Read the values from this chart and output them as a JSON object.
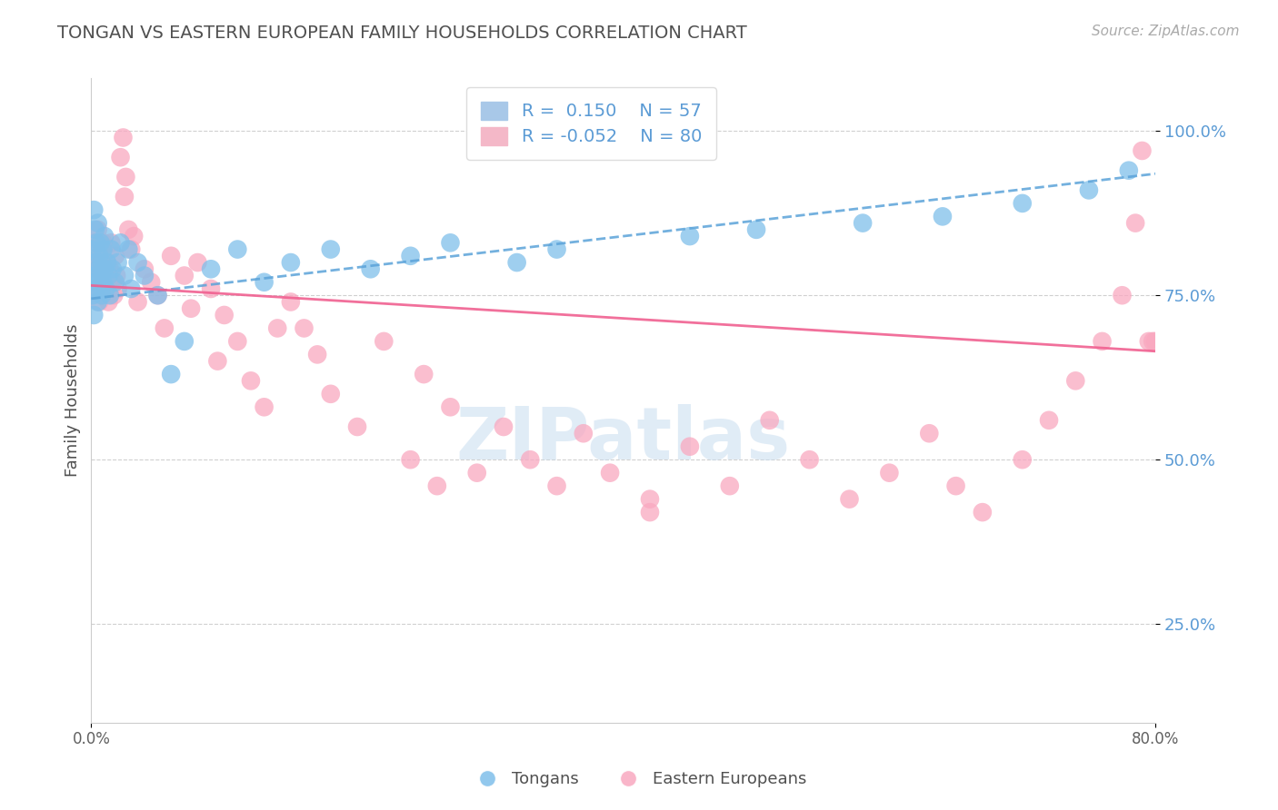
{
  "title": "TONGAN VS EASTERN EUROPEAN FAMILY HOUSEHOLDS CORRELATION CHART",
  "source_text": "Source: ZipAtlas.com",
  "ylabel": "Family Households",
  "ytick_vals": [
    0.25,
    0.5,
    0.75,
    1.0
  ],
  "ytick_labels": [
    "25.0%",
    "50.0%",
    "75.0%",
    "100.0%"
  ],
  "xlim": [
    0.0,
    0.8
  ],
  "ylim": [
    0.1,
    1.08
  ],
  "blue_R": 0.15,
  "blue_N": 57,
  "pink_R": -0.052,
  "pink_N": 80,
  "blue_scatter_color": "#7fbfea",
  "pink_scatter_color": "#f9a8c0",
  "blue_line_color": "#5ba3d9",
  "pink_line_color": "#f06090",
  "blue_tick_color": "#5b9bd5",
  "background_color": "#ffffff",
  "grid_color": "#d0d0d0",
  "title_color": "#505050",
  "legend_label_blue": "Tongans",
  "legend_label_pink": "Eastern Europeans",
  "blue_trend_x0": 0.0,
  "blue_trend_y0": 0.745,
  "blue_trend_x1": 0.8,
  "blue_trend_y1": 0.935,
  "pink_trend_x0": 0.0,
  "pink_trend_y0": 0.765,
  "pink_trend_x1": 0.8,
  "pink_trend_y1": 0.665,
  "blue_dots_x": [
    0.001,
    0.001,
    0.002,
    0.002,
    0.002,
    0.003,
    0.003,
    0.003,
    0.004,
    0.004,
    0.005,
    0.005,
    0.005,
    0.006,
    0.006,
    0.007,
    0.007,
    0.008,
    0.008,
    0.009,
    0.009,
    0.01,
    0.01,
    0.011,
    0.012,
    0.013,
    0.014,
    0.015,
    0.016,
    0.018,
    0.02,
    0.022,
    0.025,
    0.028,
    0.03,
    0.035,
    0.04,
    0.05,
    0.06,
    0.07,
    0.09,
    0.11,
    0.13,
    0.15,
    0.18,
    0.21,
    0.24,
    0.27,
    0.32,
    0.35,
    0.45,
    0.5,
    0.58,
    0.64,
    0.7,
    0.75,
    0.78
  ],
  "blue_dots_y": [
    0.82,
    0.75,
    0.88,
    0.78,
    0.72,
    0.85,
    0.8,
    0.77,
    0.83,
    0.76,
    0.79,
    0.74,
    0.86,
    0.81,
    0.77,
    0.83,
    0.78,
    0.8,
    0.75,
    0.82,
    0.77,
    0.79,
    0.84,
    0.76,
    0.8,
    0.78,
    0.75,
    0.82,
    0.79,
    0.77,
    0.8,
    0.83,
    0.78,
    0.82,
    0.76,
    0.8,
    0.78,
    0.75,
    0.63,
    0.68,
    0.79,
    0.82,
    0.77,
    0.8,
    0.82,
    0.79,
    0.81,
    0.83,
    0.8,
    0.82,
    0.84,
    0.85,
    0.86,
    0.87,
    0.89,
    0.91,
    0.94
  ],
  "pink_dots_x": [
    0.001,
    0.002,
    0.003,
    0.004,
    0.005,
    0.006,
    0.007,
    0.008,
    0.009,
    0.01,
    0.011,
    0.012,
    0.013,
    0.014,
    0.015,
    0.016,
    0.017,
    0.018,
    0.019,
    0.02,
    0.022,
    0.024,
    0.026,
    0.03,
    0.035,
    0.04,
    0.045,
    0.05,
    0.06,
    0.07,
    0.08,
    0.09,
    0.1,
    0.11,
    0.12,
    0.13,
    0.15,
    0.16,
    0.17,
    0.18,
    0.2,
    0.22,
    0.24,
    0.25,
    0.27,
    0.29,
    0.31,
    0.33,
    0.35,
    0.37,
    0.39,
    0.42,
    0.45,
    0.48,
    0.51,
    0.54,
    0.57,
    0.6,
    0.63,
    0.65,
    0.67,
    0.7,
    0.72,
    0.74,
    0.76,
    0.775,
    0.785,
    0.79,
    0.795,
    0.798,
    0.8,
    0.025,
    0.028,
    0.032,
    0.055,
    0.075,
    0.095,
    0.14,
    0.26,
    0.42
  ],
  "pink_dots_y": [
    0.8,
    0.83,
    0.76,
    0.79,
    0.85,
    0.74,
    0.81,
    0.77,
    0.83,
    0.78,
    0.76,
    0.8,
    0.74,
    0.79,
    0.83,
    0.77,
    0.75,
    0.81,
    0.78,
    0.76,
    0.96,
    0.99,
    0.93,
    0.82,
    0.74,
    0.79,
    0.77,
    0.75,
    0.81,
    0.78,
    0.8,
    0.76,
    0.72,
    0.68,
    0.62,
    0.58,
    0.74,
    0.7,
    0.66,
    0.6,
    0.55,
    0.68,
    0.5,
    0.63,
    0.58,
    0.48,
    0.55,
    0.5,
    0.46,
    0.54,
    0.48,
    0.44,
    0.52,
    0.46,
    0.56,
    0.5,
    0.44,
    0.48,
    0.54,
    0.46,
    0.42,
    0.5,
    0.56,
    0.62,
    0.68,
    0.75,
    0.86,
    0.97,
    0.68,
    0.68,
    0.68,
    0.9,
    0.85,
    0.84,
    0.7,
    0.73,
    0.65,
    0.7,
    0.46,
    0.42
  ]
}
